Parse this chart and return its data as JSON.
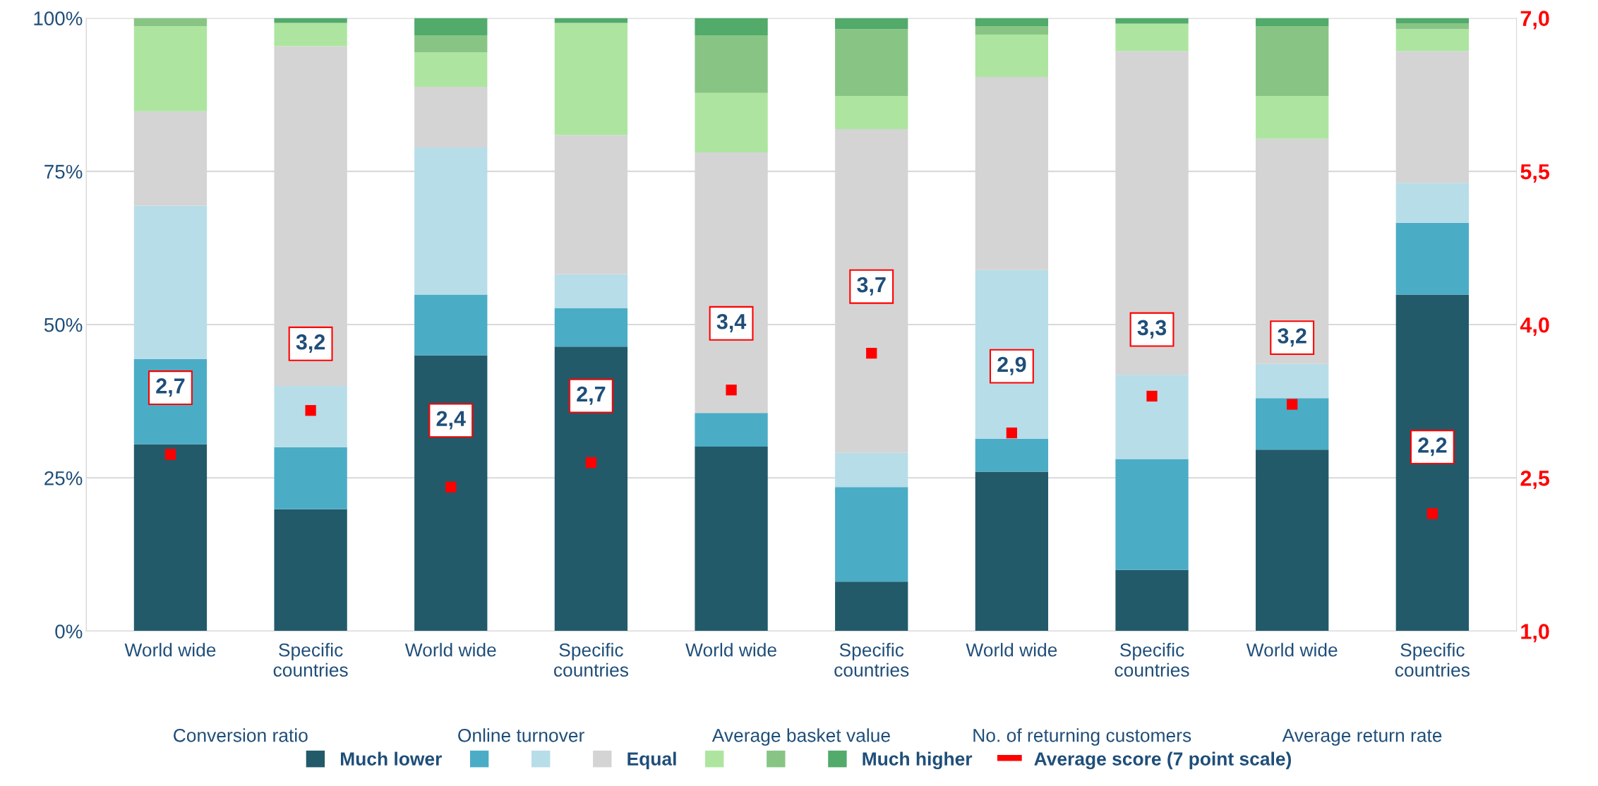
{
  "chart_data": {
    "type": "bar",
    "stacked": true,
    "categories": [
      "World wide",
      "Specific\ncountries",
      "World wide",
      "Specific\ncountries",
      "World wide",
      "Specific\ncountries",
      "World wide",
      "Specific\ncountries",
      "World wide",
      "Specific\ncountries"
    ],
    "annotations": [
      "Conversion ratio",
      "Online turnover",
      "Average basket value",
      "No. of returning customers",
      "Average return rate"
    ],
    "series": [
      {
        "name": "Much lower",
        "color": "#225a6a",
        "values": [
          30.5,
          19.9,
          45.0,
          46.4,
          30.1,
          8.1,
          26.0,
          10.0,
          29.6,
          54.9
        ]
      },
      {
        "color": "#4bacc6",
        "values": [
          13.9,
          10.1,
          9.9,
          6.3,
          5.5,
          15.4,
          5.4,
          18.1,
          8.4,
          11.7
        ]
      },
      {
        "color": "#b7dde8",
        "values": [
          25.0,
          10.0,
          24.0,
          5.5,
          0,
          5.6,
          27.5,
          13.7,
          5.6,
          6.5
        ]
      },
      {
        "name": "Equal",
        "color": "#d4d4d4",
        "values": [
          15.4,
          55.4,
          9.9,
          22.7,
          42.5,
          52.8,
          31.5,
          52.8,
          36.7,
          21.5
        ]
      },
      {
        "color": "#ade5a0",
        "values": [
          13.9,
          3.8,
          5.6,
          18.3,
          9.7,
          5.4,
          6.9,
          4.5,
          7.0,
          3.6
        ]
      },
      {
        "color": "#88c585",
        "values": [
          1.3,
          0,
          2.8,
          0,
          9.4,
          10.9,
          1.4,
          0,
          11.4,
          0.9
        ]
      },
      {
        "name": "Much higher",
        "color": "#52aa6b",
        "values": [
          0,
          0.8,
          2.8,
          0.8,
          2.8,
          1.8,
          1.3,
          0.9,
          1.3,
          0.9
        ]
      },
      {
        "name": "Average score (7 point scale)",
        "type": "scatter",
        "axis": "y2",
        "marker": "square",
        "color": "#ff0000",
        "values": [
          2.73,
          3.16,
          2.41,
          2.65,
          3.36,
          3.72,
          2.94,
          3.3,
          3.22,
          2.15
        ],
        "value_labels": [
          "2,7",
          "3,2",
          "2,4",
          "2,7",
          "3,4",
          "3,7",
          "2,9",
          "3,3",
          "3,2",
          "2,2"
        ]
      }
    ],
    "ylim": [
      0,
      100
    ],
    "yticks": [
      {
        "value": 0,
        "label": "0%"
      },
      {
        "value": 25,
        "label": "25%"
      },
      {
        "value": 50,
        "label": "50%"
      },
      {
        "value": 75,
        "label": "75%"
      },
      {
        "value": 100,
        "label": "100%"
      }
    ],
    "y2lim": [
      1.0,
      7.0
    ],
    "y2ticks": [
      {
        "value": 1.0,
        "label": "1,0"
      },
      {
        "value": 2.5,
        "label": "2,5"
      },
      {
        "value": 4.0,
        "label": "4,0"
      },
      {
        "value": 5.5,
        "label": "5,5"
      },
      {
        "value": 7.0,
        "label": "7,0"
      }
    ],
    "grid": "y",
    "legend": "bottom"
  }
}
